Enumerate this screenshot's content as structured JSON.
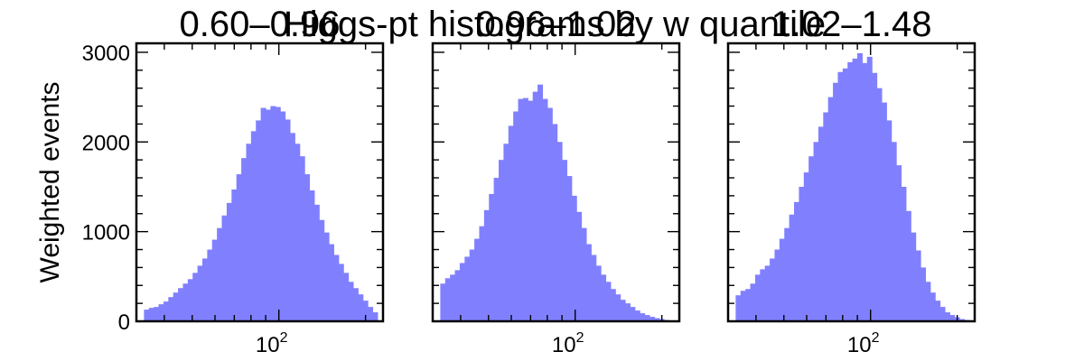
{
  "figure": {
    "suptitle": "Higgs-pt histograms by w quantile"
  },
  "chart_data": [
    {
      "type": "bar",
      "title": "0.60–0.96",
      "xscale": "log",
      "xlim": [
        32,
        230
      ],
      "ylim": [
        0,
        3100
      ],
      "ylabel": "Weighted events",
      "xlabel": "",
      "yticks": [
        0,
        1000,
        2000,
        3000
      ],
      "xticks": [
        {
          "value": 100,
          "label": "10",
          "exp": "2"
        }
      ],
      "fill_color": "#8080ff",
      "bin_range": [
        34,
        220
      ],
      "values": [
        130,
        150,
        160,
        190,
        220,
        270,
        320,
        370,
        420,
        470,
        540,
        620,
        700,
        800,
        910,
        1040,
        1180,
        1320,
        1470,
        1640,
        1820,
        1980,
        2120,
        2240,
        2380,
        2360,
        2400,
        2390,
        2340,
        2250,
        2100,
        1980,
        1840,
        1640,
        1460,
        1300,
        1130,
        990,
        860,
        740,
        640,
        540,
        440,
        370,
        300,
        230,
        160,
        100
      ]
    },
    {
      "type": "bar",
      "title": "0.96–1.02",
      "xscale": "log",
      "xlim": [
        32,
        230
      ],
      "ylim": [
        0,
        3100
      ],
      "ylabel": "",
      "xlabel": "",
      "yticks": [
        0,
        1000,
        2000,
        3000
      ],
      "xticks": [
        {
          "value": 100,
          "label": "10",
          "exp": "2"
        }
      ],
      "fill_color": "#8080ff",
      "bin_range": [
        34,
        220
      ],
      "values": [
        420,
        480,
        520,
        570,
        650,
        720,
        800,
        920,
        1060,
        1240,
        1420,
        1600,
        1800,
        1980,
        2180,
        2340,
        2480,
        2490,
        2460,
        2560,
        2640,
        2480,
        2380,
        2200,
        2000,
        1800,
        1620,
        1400,
        1220,
        1040,
        860,
        740,
        620,
        520,
        440,
        360,
        300,
        240,
        200,
        160,
        120,
        90,
        70,
        50,
        35,
        25,
        15,
        8
      ]
    },
    {
      "type": "bar",
      "title": "1.02–1.48",
      "xscale": "log",
      "xlim": [
        32,
        230
      ],
      "ylim": [
        0,
        3100
      ],
      "ylabel": "",
      "xlabel": "",
      "yticks": [
        0,
        1000,
        2000,
        3000
      ],
      "xticks": [
        {
          "value": 100,
          "label": "10",
          "exp": "2"
        }
      ],
      "fill_color": "#8080ff",
      "bin_range": [
        34,
        220
      ],
      "values": [
        290,
        340,
        360,
        420,
        520,
        580,
        620,
        700,
        800,
        920,
        1040,
        1190,
        1330,
        1500,
        1660,
        1840,
        2000,
        2170,
        2330,
        2500,
        2660,
        2780,
        2820,
        2890,
        2930,
        2990,
        2880,
        2950,
        2770,
        2600,
        2440,
        2240,
        2000,
        1740,
        1500,
        1230,
        990,
        790,
        600,
        440,
        320,
        230,
        160,
        100,
        70,
        45,
        25,
        15
      ]
    }
  ]
}
